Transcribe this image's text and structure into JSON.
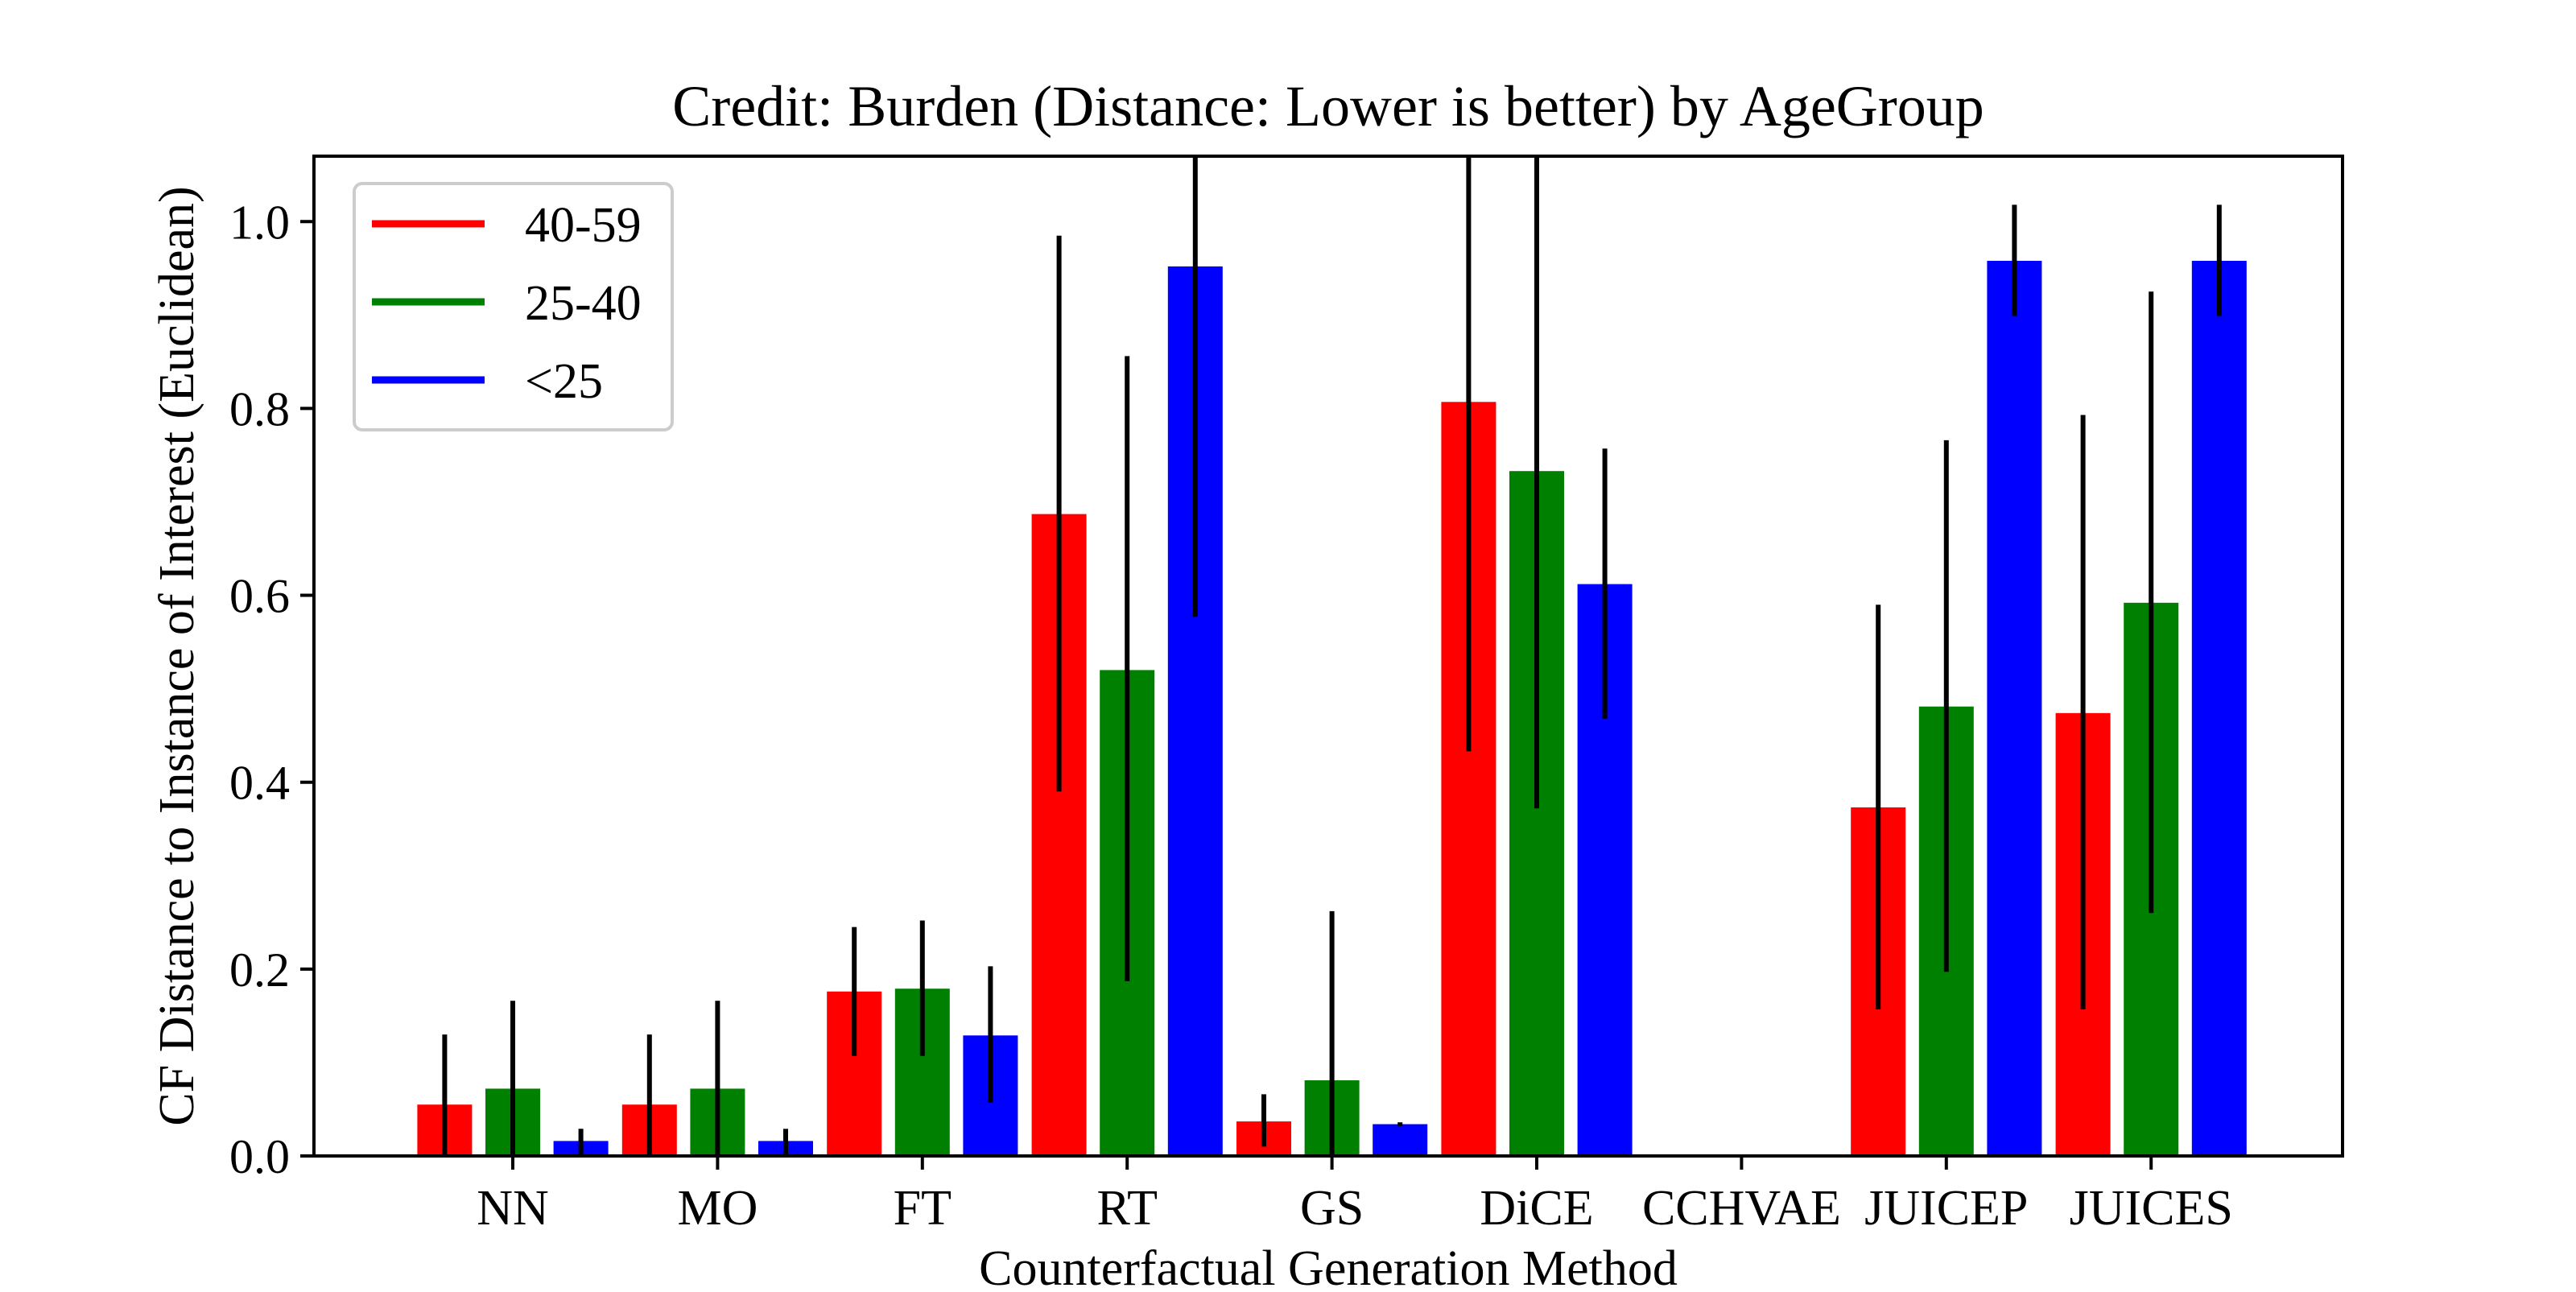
{
  "chart_data": {
    "type": "bar",
    "title": "Credit: Burden (Distance: Lower is better) by AgeGroup",
    "xlabel": "Counterfactual Generation Method",
    "ylabel": "CF Distance to Instance of Interest (Euclidean)",
    "ylim": [
      0,
      1.07
    ],
    "yticks": [
      0.0,
      0.2,
      0.4,
      0.6,
      0.8,
      1.0
    ],
    "ytick_labels": [
      "0.0",
      "0.2",
      "0.4",
      "0.6",
      "0.8",
      "1.0"
    ],
    "grid": false,
    "legend_position": "top-left",
    "categories": [
      "NN",
      "MO",
      "FT",
      "RT",
      "GS",
      "DiCE",
      "CCHVAE",
      "JUICEP",
      "JUICES"
    ],
    "series": [
      {
        "name": "40-59",
        "color": "#ff0000",
        "values": [
          0.055,
          0.055,
          0.176,
          0.687,
          0.037,
          0.807,
          null,
          0.373,
          0.474
        ],
        "error_low": [
          0.0,
          0.0,
          0.107,
          0.39,
          0.01,
          0.433,
          null,
          0.157,
          0.157
        ],
        "error_high": [
          0.13,
          0.13,
          0.245,
          0.985,
          0.066,
          1.07,
          null,
          0.59,
          0.793
        ]
      },
      {
        "name": "25-40",
        "color": "#008000",
        "values": [
          0.072,
          0.072,
          0.179,
          0.52,
          0.081,
          0.733,
          null,
          0.481,
          0.592
        ],
        "error_low": [
          0.0,
          0.0,
          0.107,
          0.187,
          0.0,
          0.372,
          null,
          0.197,
          0.26
        ],
        "error_high": [
          0.166,
          0.166,
          0.252,
          0.856,
          0.262,
          1.07,
          null,
          0.766,
          0.925
        ]
      },
      {
        "name": "<25",
        "color": "#0000ff",
        "values": [
          0.016,
          0.016,
          0.129,
          0.952,
          0.034,
          0.612,
          null,
          0.958,
          0.958
        ],
        "error_low": [
          0.0,
          0.0,
          0.057,
          0.577,
          0.032,
          0.468,
          null,
          0.899,
          0.899
        ],
        "error_high": [
          0.029,
          0.029,
          0.203,
          1.07,
          0.036,
          0.757,
          null,
          1.018,
          1.018
        ]
      }
    ]
  }
}
